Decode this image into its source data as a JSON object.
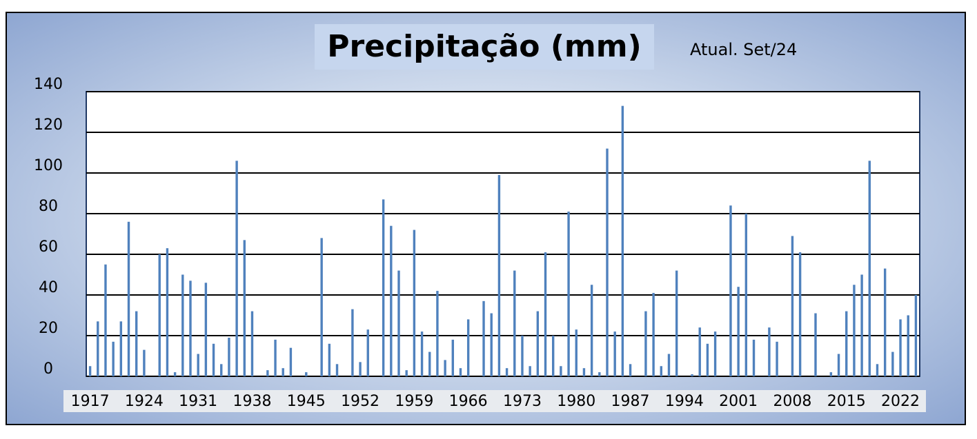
{
  "chart_data": {
    "type": "bar",
    "title": "Precipitação (mm)",
    "annotation": "Atual. Set/24",
    "categories": [
      "1917",
      null,
      null,
      null,
      null,
      null,
      null,
      "1924",
      null,
      null,
      null,
      null,
      null,
      null,
      "1931",
      null,
      null,
      null,
      null,
      null,
      null,
      "1938",
      null,
      null,
      null,
      null,
      null,
      null,
      "1945",
      null,
      null,
      null,
      null,
      null,
      null,
      "1952",
      null,
      null,
      null,
      null,
      null,
      null,
      "1959",
      null,
      null,
      null,
      null,
      null,
      null,
      "1966",
      null,
      null,
      null,
      null,
      null,
      null,
      "1973",
      null,
      null,
      null,
      null,
      null,
      null,
      "1980",
      null,
      null,
      null,
      null,
      null,
      null,
      "1987",
      null,
      null,
      null,
      null,
      null,
      null,
      "1994",
      null,
      null,
      null,
      null,
      null,
      null,
      "2001",
      null,
      null,
      null,
      null,
      null,
      null,
      "2008",
      null,
      null,
      null,
      null,
      null,
      null,
      "2015",
      null,
      null,
      null,
      null,
      null,
      null,
      "2022",
      null,
      null
    ],
    "values": [
      5,
      27,
      55,
      17,
      27,
      76,
      32,
      13,
      0,
      60,
      63,
      2,
      50,
      47,
      11,
      46,
      16,
      6,
      19,
      106,
      67,
      32,
      0,
      3,
      18,
      4,
      14,
      0,
      2,
      0,
      68,
      16,
      6,
      0,
      33,
      7,
      23,
      0,
      87,
      74,
      52,
      3,
      72,
      22,
      12,
      42,
      8,
      18,
      4,
      28,
      0,
      37,
      31,
      99,
      4,
      52,
      20,
      5,
      32,
      61,
      20,
      5,
      81,
      23,
      4,
      45,
      2,
      112,
      22,
      133,
      6,
      0,
      32,
      41,
      5,
      11,
      52,
      0,
      1,
      24,
      16,
      22,
      0,
      84,
      44,
      80,
      18,
      0,
      24,
      17,
      0,
      69,
      61,
      0,
      31,
      0,
      2,
      11,
      32,
      45,
      50,
      106,
      6,
      53,
      12,
      28,
      30,
      40
    ],
    "color": "#4f81bd",
    "ylim": [
      0,
      140
    ],
    "yticks": [
      0,
      20,
      40,
      60,
      80,
      100,
      120,
      140
    ],
    "grid": true
  }
}
